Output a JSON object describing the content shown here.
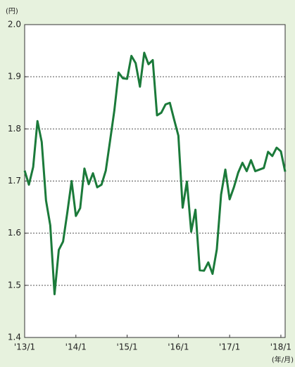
{
  "chart_data": {
    "type": "line",
    "y_unit": "(円)",
    "x_unit": "(年/月)",
    "categories": [
      "'13/1",
      null,
      null,
      null,
      null,
      null,
      null,
      null,
      null,
      null,
      null,
      null,
      "'14/1",
      null,
      null,
      null,
      null,
      null,
      null,
      null,
      null,
      null,
      null,
      null,
      "'15/1",
      null,
      null,
      null,
      null,
      null,
      null,
      null,
      null,
      null,
      null,
      null,
      "'16/1",
      null,
      null,
      null,
      null,
      null,
      null,
      null,
      null,
      null,
      null,
      null,
      "'17/1",
      null,
      null,
      null,
      null,
      null,
      null,
      null,
      null,
      null,
      null,
      null,
      "'18/1",
      null
    ],
    "series": [
      {
        "color": "#1b7a3a",
        "values": [
          1.72,
          1.693,
          1.727,
          1.815,
          1.775,
          1.663,
          1.615,
          1.483,
          1.568,
          1.584,
          1.64,
          1.7,
          1.633,
          1.648,
          1.724,
          1.694,
          1.715,
          1.688,
          1.693,
          1.72,
          1.777,
          1.835,
          1.908,
          1.897,
          1.896,
          1.94,
          1.926,
          1.881,
          1.946,
          1.924,
          1.932,
          1.826,
          1.831,
          1.847,
          1.85,
          1.818,
          1.787,
          1.649,
          1.699,
          1.603,
          1.645,
          1.529,
          1.528,
          1.544,
          1.522,
          1.569,
          1.674,
          1.722,
          1.665,
          1.688,
          1.716,
          1.735,
          1.719,
          1.74,
          1.719,
          1.722,
          1.725,
          1.756,
          1.748,
          1.764,
          1.757,
          1.718
        ]
      }
    ],
    "ylim": [
      1.4,
      2.0
    ],
    "yticks": [
      1.4,
      1.5,
      1.6,
      1.7,
      1.8,
      1.9,
      {
        "value": 2,
        "label": "2.0"
      }
    ],
    "grid": true
  }
}
